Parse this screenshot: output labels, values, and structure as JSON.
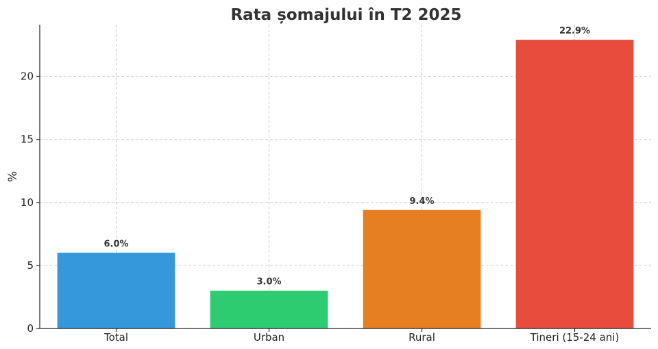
{
  "chart_data": {
    "type": "bar",
    "title": "Rata șomajului în T2 2025",
    "xlabel": "",
    "ylabel": "%",
    "categories": [
      "Total",
      "Urban",
      "Rural",
      "Tineri (15-24 ani)"
    ],
    "values": [
      6.0,
      3.0,
      9.4,
      22.9
    ],
    "value_labels": [
      "6.0%",
      "3.0%",
      "9.4%",
      "22.9%"
    ],
    "colors": [
      "#3498db",
      "#2ecc71",
      "#e67e22",
      "#e74c3c"
    ],
    "ylim": [
      0,
      24.1
    ],
    "yticks": [
      0,
      5,
      10,
      15,
      20
    ],
    "grid": true
  }
}
